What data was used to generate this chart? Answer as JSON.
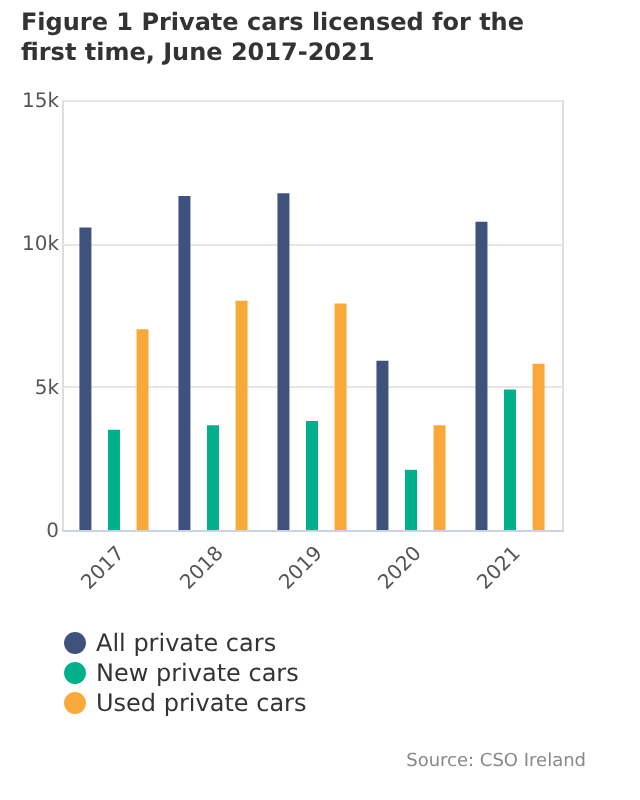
{
  "chart_data": {
    "type": "bar",
    "title": "Figure 1 Private cars licensed for the first time, June 2017-2021",
    "categories": [
      "2017",
      "2018",
      "2019",
      "2020",
      "2021"
    ],
    "series": [
      {
        "name": "All private cars",
        "color": "#3f527e",
        "values": [
          10550,
          11650,
          11750,
          5900,
          10750
        ]
      },
      {
        "name": "New private cars",
        "color": "#00b08a",
        "values": [
          3500,
          3650,
          3800,
          2100,
          4900
        ]
      },
      {
        "name": "Used private cars",
        "color": "#f9a93a",
        "values": [
          7000,
          8000,
          7900,
          3650,
          5800
        ]
      }
    ],
    "ylim": [
      0,
      15000
    ],
    "yticks": [
      {
        "value": 0,
        "label": "0"
      },
      {
        "value": 5000,
        "label": "5k"
      },
      {
        "value": 10000,
        "label": "10k"
      },
      {
        "value": 15000,
        "label": "15k"
      }
    ],
    "grid": "y",
    "legend": "bottom",
    "annotations": [
      "Source: CSO Ireland"
    ]
  }
}
